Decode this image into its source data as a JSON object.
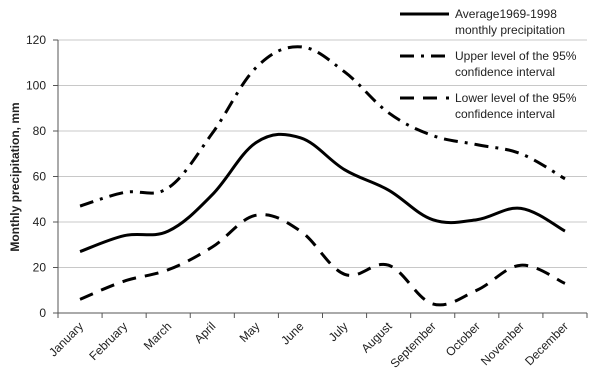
{
  "chart_data": {
    "type": "line",
    "categories": [
      "January",
      "February",
      "March",
      "April",
      "May",
      "June",
      "July",
      "August",
      "September",
      "October",
      "November",
      "December"
    ],
    "ylabel": "Monthly precipitation,  mm",
    "xlabel": "",
    "ylim": [
      0,
      120
    ],
    "yticks": [
      0,
      20,
      40,
      60,
      80,
      100,
      120
    ],
    "grid": true,
    "legend_position": "top-right",
    "series": [
      {
        "name": "Average1969-1998 monthly precipitation",
        "legend_lines": [
          "Average1969-1998",
          "monthly precipitation"
        ],
        "style": "solid",
        "values": [
          27,
          34,
          36,
          52,
          75,
          77,
          63,
          54,
          41,
          41,
          46,
          36
        ]
      },
      {
        "name": "Upper level of the 95% confidence interval",
        "legend_lines": [
          "Upper level of the 95%",
          "confidence interval"
        ],
        "style": "dashdot",
        "values": [
          47,
          53,
          55,
          79,
          108,
          117,
          106,
          88,
          78,
          74,
          70,
          59
        ]
      },
      {
        "name": "Lower level of the 95% confidence interval",
        "legend_lines": [
          "Lower level of the 95%",
          "confidence interval"
        ],
        "style": "dashed",
        "values": [
          6,
          14,
          19,
          29,
          43,
          36,
          17,
          21,
          4,
          10,
          21,
          13
        ]
      }
    ],
    "line_color": "#000000"
  }
}
